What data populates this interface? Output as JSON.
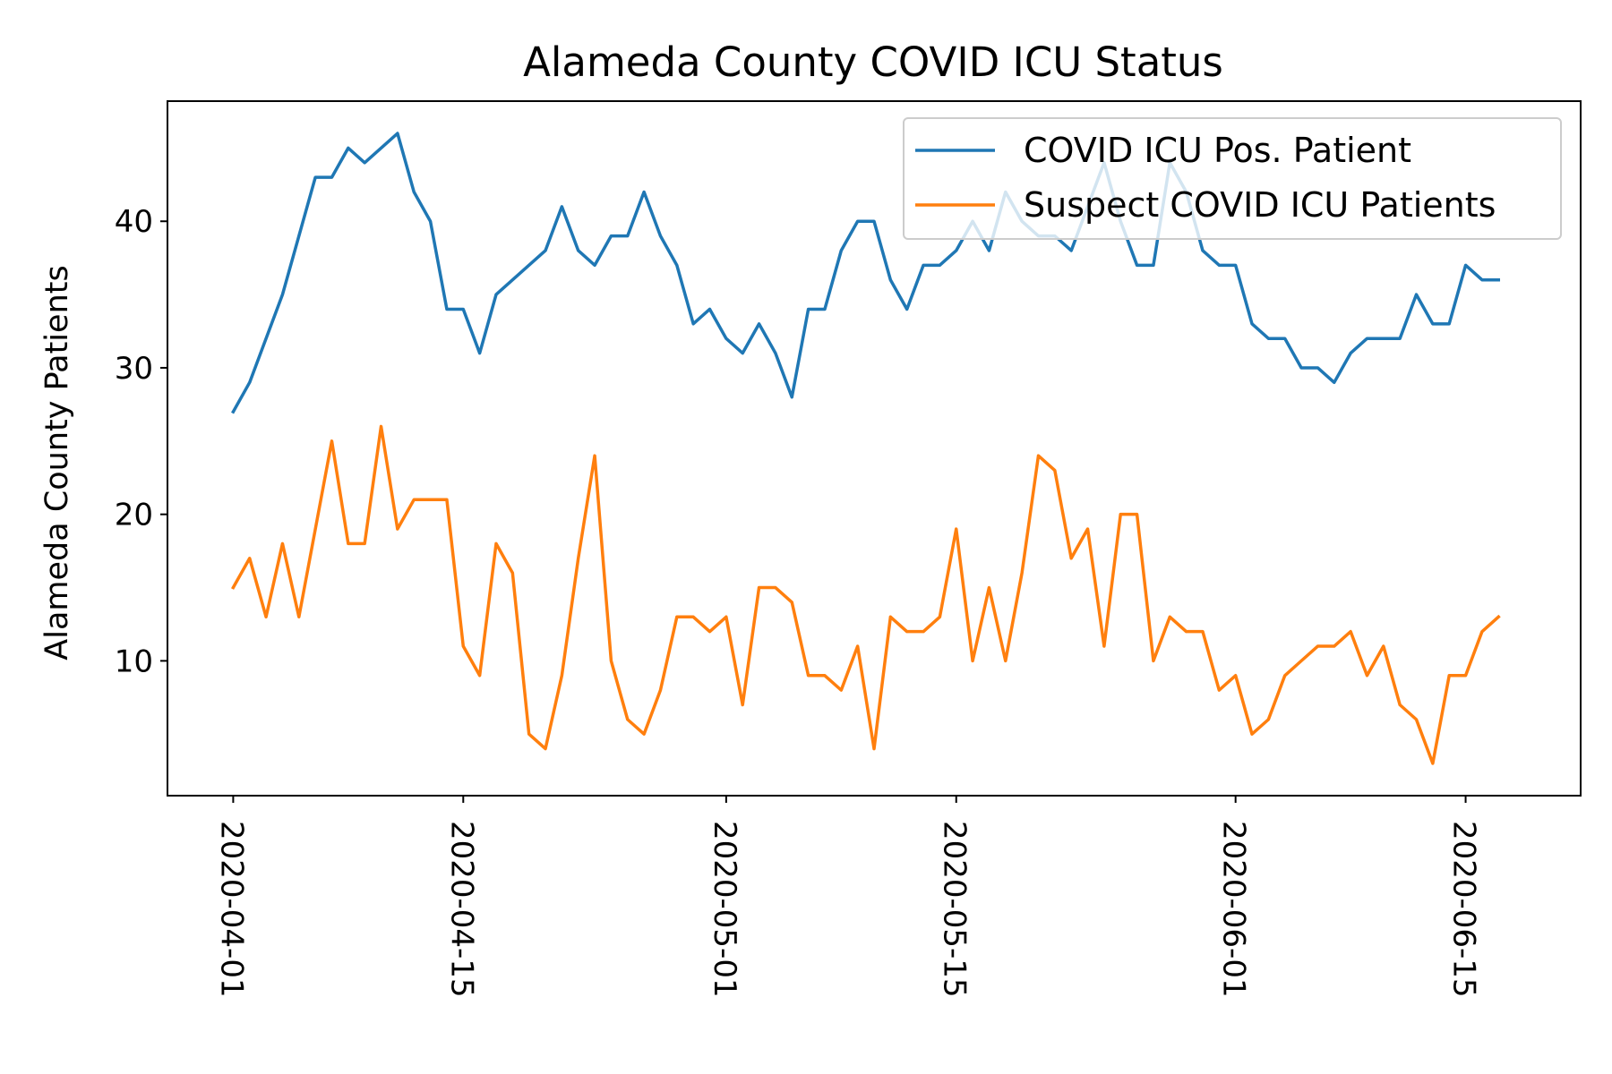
{
  "chart_data": {
    "type": "line",
    "title": "Alameda County COVID ICU Status",
    "xlabel": "",
    "ylabel": "Alameda County Patients",
    "x_start": "2020-04-01",
    "x_end": "2020-06-18",
    "xlim": [
      "2020-03-28",
      "2020-06-22"
    ],
    "ylim": [
      0.8,
      48.2
    ],
    "x_ticks": [
      "2020-04-01",
      "2020-04-15",
      "2020-05-01",
      "2020-05-15",
      "2020-06-01",
      "2020-06-15"
    ],
    "y_ticks": [
      10,
      20,
      30,
      40
    ],
    "grid": false,
    "legend_position": "top-right",
    "series": [
      {
        "name": "COVID ICU Pos. Patient",
        "color": "#1f77b4",
        "values": [
          27,
          29,
          32,
          35,
          39,
          43,
          43,
          45,
          44,
          45,
          46,
          42,
          40,
          34,
          34,
          31,
          35,
          36,
          37,
          38,
          41,
          38,
          37,
          39,
          39,
          42,
          39,
          37,
          33,
          34,
          32,
          31,
          33,
          31,
          28,
          34,
          34,
          38,
          40,
          40,
          36,
          34,
          37,
          37,
          38,
          40,
          38,
          42,
          40,
          39,
          39,
          38,
          41,
          44,
          40,
          37,
          37,
          44,
          42,
          38,
          37,
          37,
          33,
          32,
          32,
          30,
          30,
          29,
          31,
          32,
          32,
          32,
          35,
          33,
          33,
          37,
          36,
          36
        ]
      },
      {
        "name": "Suspect COVID ICU Patients",
        "color": "#ff7f0e",
        "values": [
          15,
          17,
          13,
          18,
          13,
          19,
          25,
          18,
          18,
          26,
          19,
          21,
          21,
          21,
          11,
          9,
          18,
          16,
          5,
          4,
          9,
          17,
          24,
          10,
          6,
          5,
          8,
          13,
          13,
          12,
          13,
          7,
          15,
          15,
          14,
          9,
          9,
          8,
          11,
          4,
          13,
          12,
          12,
          13,
          19,
          10,
          15,
          10,
          16,
          24,
          23,
          17,
          19,
          11,
          20,
          20,
          10,
          13,
          12,
          12,
          8,
          9,
          5,
          6,
          9,
          10,
          11,
          11,
          12,
          9,
          11,
          7,
          6,
          3,
          9,
          9,
          12,
          13
        ]
      }
    ]
  }
}
